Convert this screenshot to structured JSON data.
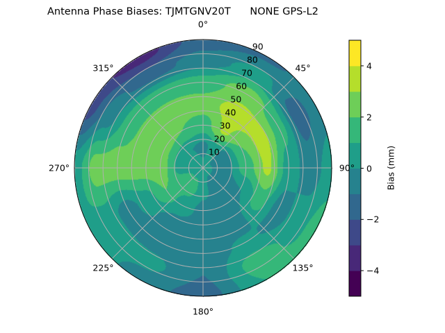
{
  "title": "Antenna Phase Biases: TJMTGNV20T      NONE GPS-L2",
  "chart_data": {
    "type": "contour",
    "projection": "polar",
    "theta_direction": "clockwise",
    "theta_zero": "top",
    "theta_tick_labels": [
      "0°",
      "45°",
      "90°",
      "135°",
      "180°",
      "225°",
      "270°",
      "315°"
    ],
    "theta_ticks": [
      0,
      45,
      90,
      135,
      180,
      225,
      270,
      315
    ],
    "r_ticks": [
      10,
      20,
      30,
      40,
      50,
      60,
      70,
      80,
      90
    ],
    "r_tick_labels": [
      "10",
      "20",
      "30",
      "40",
      "50",
      "60",
      "70",
      "80",
      "90"
    ],
    "rlim": [
      0,
      90
    ],
    "grid": true,
    "levels": [
      -5,
      -4,
      -3,
      -2,
      -1,
      0,
      1,
      2,
      3,
      4,
      5
    ],
    "colormap": "viridis",
    "band_colors": [
      "#440154",
      "#482878",
      "#3e4989",
      "#31688e",
      "#26828e",
      "#1f9e89",
      "#35b779",
      "#6ece58",
      "#b5de2b",
      "#fde725"
    ],
    "grid_azimuth_deg": [
      0,
      30,
      60,
      90,
      120,
      150,
      180,
      210,
      240,
      270,
      300,
      330
    ],
    "grid_radius_deg": [
      0,
      15,
      30,
      45,
      60,
      75,
      90
    ],
    "bias_mm": [
      [
        0.3,
        -0.3,
        1.5,
        2.5,
        1.5,
        -0.5,
        -1.5
      ],
      [
        0.3,
        0.5,
        3.2,
        3.5,
        2.5,
        0.5,
        -1.2
      ],
      [
        0.3,
        -0.8,
        2.0,
        3.5,
        1.5,
        -1.5,
        -0.5
      ],
      [
        0.3,
        -0.5,
        1.5,
        3.2,
        0.5,
        -0.5,
        0.5
      ],
      [
        0.3,
        -0.5,
        0.0,
        1.5,
        -0.5,
        0.5,
        1.5
      ],
      [
        0.3,
        -0.5,
        -0.5,
        -0.5,
        0.2,
        1.5,
        1.0
      ],
      [
        0.3,
        0.3,
        -0.3,
        -0.5,
        -0.5,
        -1.0,
        -1.5
      ],
      [
        0.3,
        1.5,
        0.5,
        -0.5,
        -0.5,
        0.3,
        -0.5
      ],
      [
        0.3,
        1.5,
        2.0,
        0.5,
        -0.5,
        0.5,
        1.0
      ],
      [
        0.3,
        0.5,
        2.5,
        2.5,
        2.5,
        2.5,
        0.5
      ],
      [
        0.3,
        0.3,
        2.3,
        2.5,
        1.5,
        -0.5,
        -2.5
      ],
      [
        0.3,
        0.0,
        2.0,
        2.5,
        1.5,
        -1.5,
        -3.5
      ]
    ],
    "colorbar": {
      "label": "Bias (mm)",
      "ticks": [
        -4,
        -2,
        0,
        2,
        4
      ],
      "tick_labels": [
        "−4",
        "−2",
        "0",
        "2",
        "4"
      ],
      "range": [
        -5,
        5
      ]
    }
  }
}
